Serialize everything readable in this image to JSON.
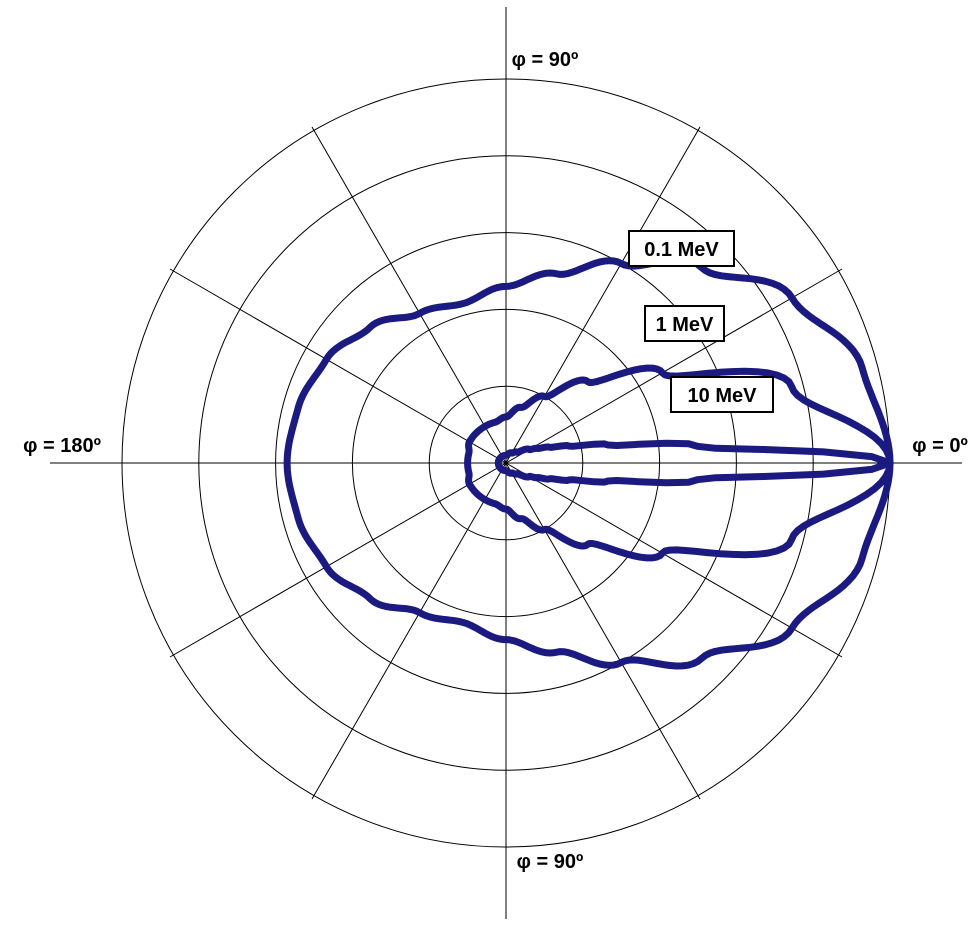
{
  "chart_data": {
    "type": "polar-line",
    "title": "",
    "angle_labels": [
      {
        "text": "φ = 90º",
        "angle": 90
      },
      {
        "text": "φ = 0º",
        "angle": 0
      },
      {
        "text": "φ = 180º",
        "angle": 180
      },
      {
        "text": "φ = 90º",
        "angle": 270
      }
    ],
    "radial_rings": 5,
    "radial_max": 1.0,
    "spoke_step_deg": 30,
    "grid": true,
    "series_color": "#1a1a80",
    "series": [
      {
        "name": "0.1 MeV",
        "angle_deg": [
          0,
          15,
          30,
          45,
          60,
          75,
          90,
          105,
          120,
          135,
          150,
          165,
          180
        ],
        "radius": [
          1.0,
          0.96,
          0.86,
          0.72,
          0.6,
          0.51,
          0.46,
          0.43,
          0.45,
          0.5,
          0.54,
          0.56,
          0.57
        ]
      },
      {
        "name": "1 MeV",
        "angle_deg": [
          0,
          15,
          30,
          45,
          60,
          75,
          90,
          105,
          120,
          135,
          150,
          165,
          180
        ],
        "radius": [
          1.0,
          0.77,
          0.47,
          0.3,
          0.2,
          0.15,
          0.12,
          0.11,
          0.11,
          0.11,
          0.11,
          0.1,
          0.1
        ]
      },
      {
        "name": "10 MeV",
        "angle_deg": [
          0,
          5,
          10,
          15,
          20,
          25,
          30,
          45,
          60,
          90,
          120,
          150,
          180
        ],
        "radius": [
          1.0,
          0.5,
          0.27,
          0.17,
          0.12,
          0.09,
          0.07,
          0.04,
          0.03,
          0.02,
          0.02,
          0.02,
          0.02
        ]
      }
    ]
  }
}
